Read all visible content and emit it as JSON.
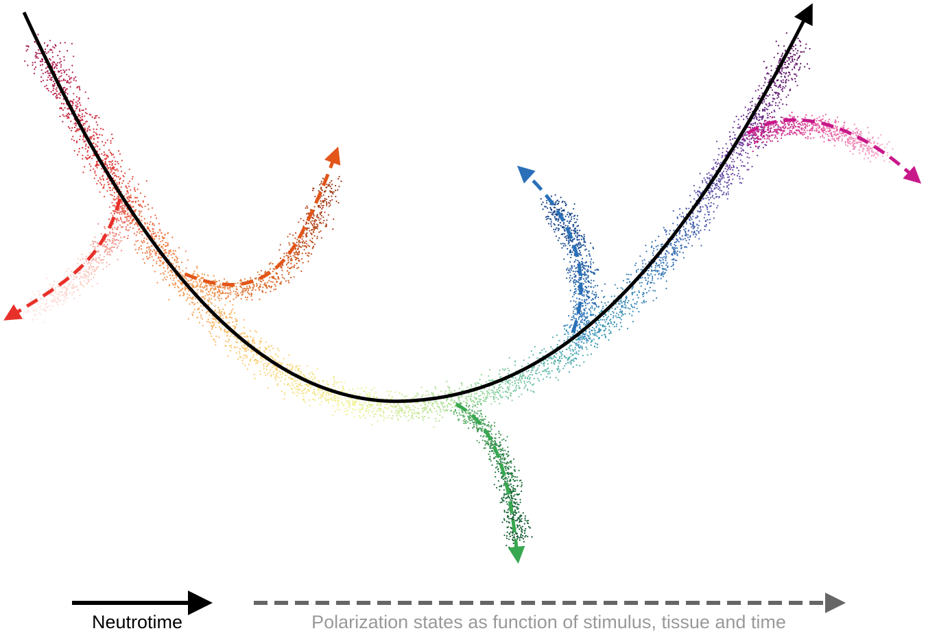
{
  "legend": {
    "main": "Neutrotime",
    "branches": "Polarization states as function of stimulus, tissue and time"
  }
}
